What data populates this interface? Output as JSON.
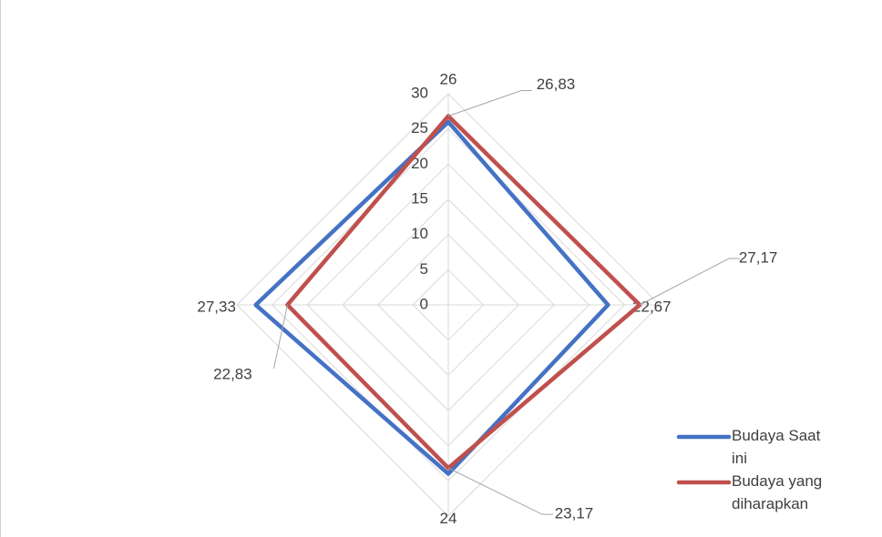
{
  "chart_data": {
    "type": "radar",
    "categories": [
      null,
      null,
      null,
      null
    ],
    "series": [
      {
        "name": "Budaya Saat ini",
        "color": "#4472c4",
        "values": [
          26,
          22.67,
          24,
          27.33
        ],
        "value_labels": [
          "26",
          "22,67",
          "24",
          "27,33"
        ]
      },
      {
        "name": "Budaya yang diharapkan",
        "color": "#c0504d",
        "values": [
          26.83,
          27.17,
          23.17,
          22.83
        ],
        "value_labels": [
          "26,83",
          "27,17",
          "23,17",
          "22,83"
        ]
      }
    ],
    "ylim": [
      0,
      30
    ],
    "yticks": [
      0,
      5,
      10,
      15,
      20,
      25,
      30
    ],
    "grid": true,
    "legend": "bottom-right"
  }
}
